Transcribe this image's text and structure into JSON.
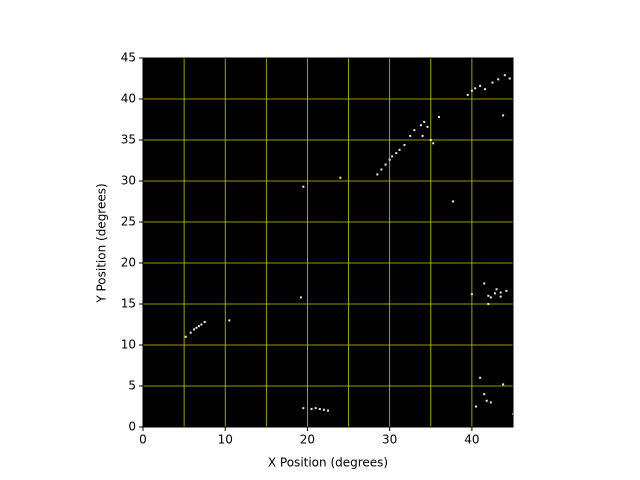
{
  "chart_data": {
    "type": "scatter",
    "xlabel": "X Position (degrees)",
    "ylabel": "Y Position (degrees)",
    "xlim": [
      0,
      45
    ],
    "ylim": [
      0,
      45
    ],
    "xticks": [
      0,
      10,
      20,
      30,
      40
    ],
    "yticks": [
      0,
      5,
      10,
      15,
      20,
      25,
      30,
      35,
      40,
      45
    ],
    "xgrid": [
      0,
      5,
      10,
      15,
      20,
      25,
      30,
      35,
      40,
      45
    ],
    "grid": true,
    "grid_color": "#c8c800",
    "background": "#000000",
    "color": "#f6ead2",
    "x": [
      5.2,
      5.8,
      6.2,
      6.5,
      6.8,
      7.1,
      7.5,
      10.5,
      19.5,
      20.5,
      21.0,
      21.5,
      22.0,
      22.5,
      19.2,
      19.5,
      24.0,
      37.7,
      28.5,
      29.0,
      29.5,
      30.0,
      30.3,
      30.8,
      31.2,
      31.8,
      32.5,
      33.0,
      33.8,
      34.2,
      34.6,
      35.0,
      34.0,
      35.3,
      36.0,
      39.5,
      40.0,
      40.4,
      41.0,
      41.6,
      42.5,
      43.2,
      44.0,
      44.6,
      43.8,
      40.0,
      41.5,
      42.0,
      42.3,
      42.8,
      43.5,
      42.0,
      43.0,
      43.5,
      44.2,
      41.0,
      45.0,
      40.5,
      41.8,
      42.3,
      41.5,
      43.8
    ],
    "values": [
      11.0,
      11.5,
      11.9,
      12.1,
      12.3,
      12.5,
      12.8,
      13.0,
      2.3,
      2.2,
      2.3,
      2.2,
      2.1,
      2.0,
      15.8,
      29.3,
      30.4,
      27.5,
      30.8,
      31.4,
      32.0,
      32.6,
      33.0,
      33.4,
      33.8,
      34.4,
      35.5,
      36.2,
      36.8,
      37.2,
      36.6,
      35.0,
      35.5,
      34.6,
      37.8,
      40.5,
      41.0,
      41.3,
      41.6,
      41.2,
      42.0,
      42.4,
      42.9,
      42.5,
      38.0,
      16.2,
      17.5,
      16.0,
      15.8,
      16.3,
      15.9,
      15.0,
      16.8,
      16.4,
      16.6,
      6.0,
      1.6,
      2.5,
      3.2,
      3.0,
      4.0,
      5.2
    ]
  }
}
